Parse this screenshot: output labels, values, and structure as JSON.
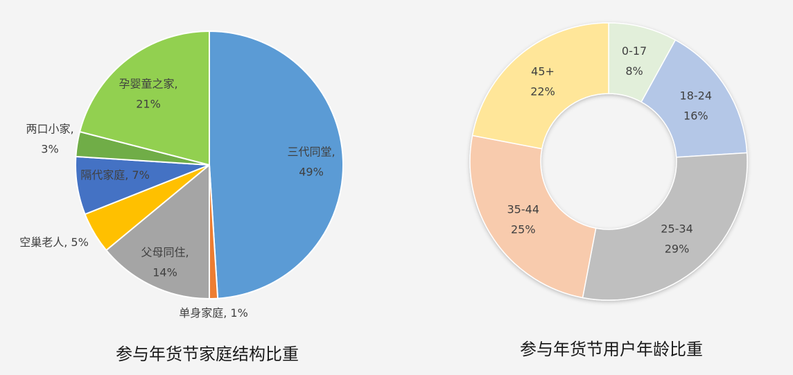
{
  "chart_data": [
    {
      "type": "pie",
      "title": "参与年货节家庭结构比重",
      "categories": [
        "三代同堂",
        "单身家庭",
        "父母同住",
        "空巢老人",
        "隔代家庭",
        "两口小家",
        "孕婴童之家"
      ],
      "values": [
        49,
        1,
        14,
        5,
        7,
        3,
        21
      ],
      "colors": [
        "#5b9bd5",
        "#ed7d31",
        "#a5a5a5",
        "#ffc000",
        "#4472c4",
        "#70ad47",
        "#92d050"
      ],
      "labels": [
        [
          "三代同堂,",
          "49%"
        ],
        [
          "单身家庭, 1%"
        ],
        [
          "父母同住,",
          "14%"
        ],
        [
          "空巢老人, 5%"
        ],
        [
          "隔代家庭, 7%"
        ],
        [
          "两口小家,",
          "3%"
        ],
        [
          "孕婴童之家,",
          "21%"
        ]
      ]
    },
    {
      "type": "pie",
      "title": "参与年货节用户年龄比重",
      "categories": [
        "0-17",
        "18-24",
        "25-34",
        "35-44",
        "45+"
      ],
      "values": [
        8,
        16,
        29,
        25,
        22
      ],
      "colors": [
        "#e2efda",
        "#b4c7e7",
        "#bfbfbf",
        "#f8cbad",
        "#ffe699"
      ],
      "labels": [
        [
          "0-17",
          "8%"
        ],
        [
          "18-24",
          "16%"
        ],
        [
          "25-34",
          "29%"
        ],
        [
          "35-44",
          "25%"
        ],
        [
          "45+",
          "22%"
        ]
      ]
    }
  ]
}
